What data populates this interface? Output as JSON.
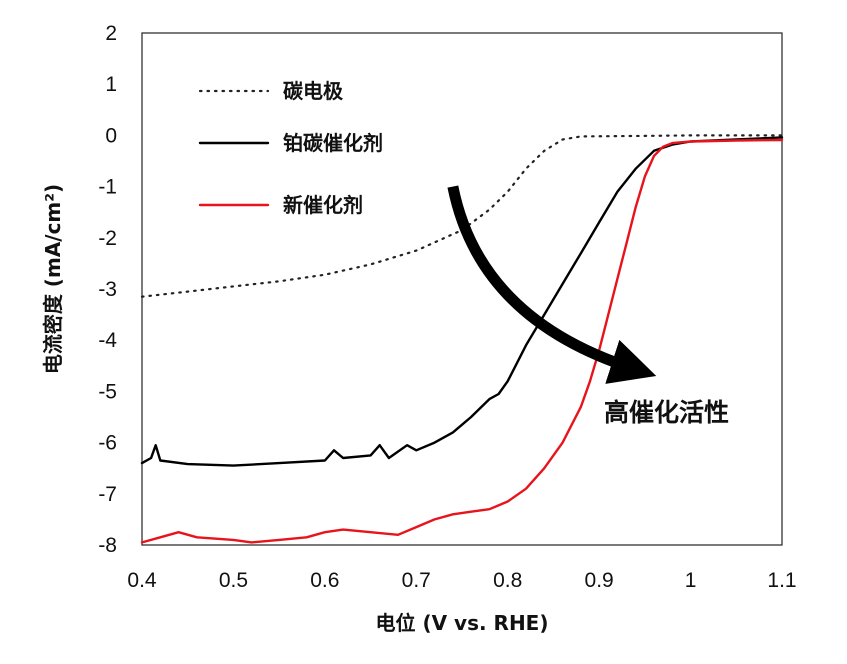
{
  "chart_data": {
    "type": "line",
    "xlabel": "电位 (V vs. RHE)",
    "ylabel": "电流密度 (mA/cm²)",
    "xlim": [
      0.4,
      1.1
    ],
    "ylim": [
      -8,
      2
    ],
    "x_ticks": [
      0.4,
      0.5,
      0.6,
      0.7,
      0.8,
      0.9,
      1,
      1.1
    ],
    "y_ticks": [
      2,
      1,
      0,
      -1,
      -2,
      -3,
      -4,
      -5,
      -6,
      -7,
      -8
    ],
    "grid": false,
    "legend_position": "top-left",
    "annotation": {
      "text": "高催化活性",
      "arrow_from": [
        0.74,
        -1.0
      ],
      "arrow_to": [
        0.98,
        -4.6
      ]
    },
    "series": [
      {
        "name": "碳电极",
        "color": "#222222",
        "style": "dotted",
        "points": [
          [
            0.4,
            -3.15
          ],
          [
            0.45,
            -3.05
          ],
          [
            0.5,
            -2.95
          ],
          [
            0.55,
            -2.85
          ],
          [
            0.6,
            -2.72
          ],
          [
            0.65,
            -2.52
          ],
          [
            0.7,
            -2.25
          ],
          [
            0.75,
            -1.85
          ],
          [
            0.78,
            -1.45
          ],
          [
            0.8,
            -1.1
          ],
          [
            0.82,
            -0.65
          ],
          [
            0.84,
            -0.3
          ],
          [
            0.86,
            -0.08
          ],
          [
            0.88,
            -0.02
          ],
          [
            0.95,
            -0.01
          ],
          [
            1.0,
            0.0
          ],
          [
            1.05,
            0.0
          ],
          [
            1.1,
            0.0
          ]
        ]
      },
      {
        "name": "铂碳催化剂",
        "color": "#000000",
        "style": "solid",
        "points": [
          [
            0.4,
            -6.4
          ],
          [
            0.41,
            -6.3
          ],
          [
            0.415,
            -6.05
          ],
          [
            0.42,
            -6.35
          ],
          [
            0.45,
            -6.42
          ],
          [
            0.5,
            -6.45
          ],
          [
            0.55,
            -6.4
          ],
          [
            0.6,
            -6.35
          ],
          [
            0.61,
            -6.15
          ],
          [
            0.62,
            -6.3
          ],
          [
            0.65,
            -6.25
          ],
          [
            0.66,
            -6.05
          ],
          [
            0.67,
            -6.3
          ],
          [
            0.69,
            -6.05
          ],
          [
            0.7,
            -6.15
          ],
          [
            0.72,
            -6.0
          ],
          [
            0.74,
            -5.8
          ],
          [
            0.76,
            -5.5
          ],
          [
            0.78,
            -5.15
          ],
          [
            0.79,
            -5.05
          ],
          [
            0.8,
            -4.8
          ],
          [
            0.81,
            -4.45
          ],
          [
            0.82,
            -4.1
          ],
          [
            0.84,
            -3.5
          ],
          [
            0.86,
            -2.9
          ],
          [
            0.88,
            -2.3
          ],
          [
            0.9,
            -1.7
          ],
          [
            0.92,
            -1.1
          ],
          [
            0.94,
            -0.65
          ],
          [
            0.96,
            -0.3
          ],
          [
            0.98,
            -0.18
          ],
          [
            1.0,
            -0.12
          ],
          [
            1.05,
            -0.08
          ],
          [
            1.1,
            -0.04
          ]
        ]
      },
      {
        "name": "新催化剂",
        "color": "#e8141c",
        "style": "solid",
        "points": [
          [
            0.4,
            -7.95
          ],
          [
            0.42,
            -7.85
          ],
          [
            0.44,
            -7.75
          ],
          [
            0.46,
            -7.85
          ],
          [
            0.5,
            -7.9
          ],
          [
            0.52,
            -7.95
          ],
          [
            0.55,
            -7.9
          ],
          [
            0.58,
            -7.85
          ],
          [
            0.6,
            -7.75
          ],
          [
            0.62,
            -7.7
          ],
          [
            0.65,
            -7.75
          ],
          [
            0.68,
            -7.8
          ],
          [
            0.7,
            -7.65
          ],
          [
            0.72,
            -7.5
          ],
          [
            0.74,
            -7.4
          ],
          [
            0.76,
            -7.35
          ],
          [
            0.78,
            -7.3
          ],
          [
            0.8,
            -7.15
          ],
          [
            0.82,
            -6.9
          ],
          [
            0.84,
            -6.5
          ],
          [
            0.86,
            -6.0
          ],
          [
            0.88,
            -5.3
          ],
          [
            0.89,
            -4.8
          ],
          [
            0.9,
            -4.2
          ],
          [
            0.91,
            -3.5
          ],
          [
            0.92,
            -2.8
          ],
          [
            0.93,
            -2.1
          ],
          [
            0.94,
            -1.4
          ],
          [
            0.95,
            -0.8
          ],
          [
            0.96,
            -0.4
          ],
          [
            0.97,
            -0.22
          ],
          [
            0.98,
            -0.15
          ],
          [
            1.0,
            -0.12
          ],
          [
            1.05,
            -0.1
          ],
          [
            1.1,
            -0.09
          ]
        ]
      }
    ]
  }
}
